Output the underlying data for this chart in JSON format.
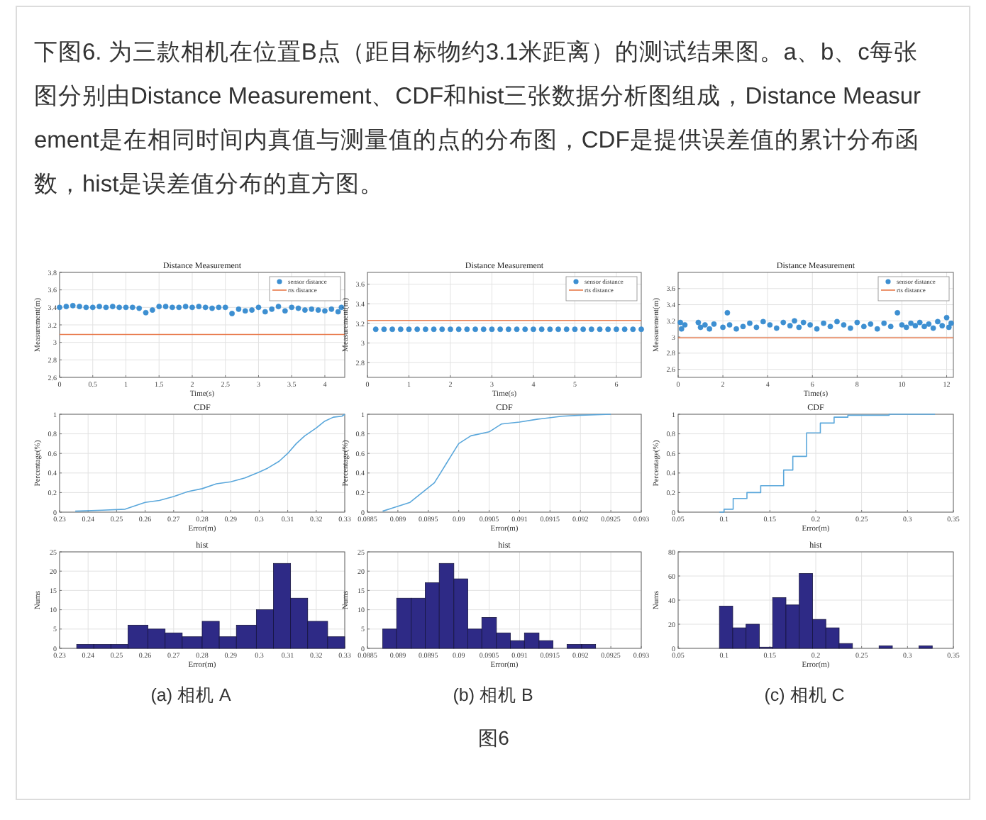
{
  "chart_data": [
    {
      "type": "other",
      "title": "下图6. 为三款相机在位置B点（距目标物约3.1米距离）的测试结果图。a、b、c每张图分别由Distance Measurement、CDF和hist三张数据分析图组成，Distance Measurement是在相同时间内真值与测量值的点的分布图，CDF是提供误差值的累计分布函数，hist是误差值分布的直方图。",
      "annotations": [
        "图6"
      ]
    },
    {
      "type": "scatter",
      "title": "Distance Measurement",
      "xlabel": "Time(s)",
      "ylabel": "Measurement(m)",
      "xlim": [
        0,
        4.3
      ],
      "xticks": [
        0,
        0.5,
        1,
        1.5,
        2,
        2.5,
        3,
        3.5,
        4
      ],
      "ylim": [
        2.6,
        3.8
      ],
      "yticks": [
        2.6,
        2.8,
        3,
        3.2,
        3.4,
        3.6,
        3.8
      ],
      "grid": true,
      "legend": "top right",
      "series": [
        {
          "name": "sensor distance",
          "marker": "circle",
          "color": "#3d8fd1",
          "x": [
            0,
            0.1,
            0.2,
            0.3,
            0.4,
            0.5,
            0.6,
            0.7,
            0.8,
            0.9,
            1.0,
            1.1,
            1.2,
            1.3,
            1.4,
            1.5,
            1.6,
            1.7,
            1.8,
            1.9,
            2.0,
            2.1,
            2.2,
            2.3,
            2.4,
            2.5,
            2.6,
            2.7,
            2.8,
            2.9,
            3.0,
            3.1,
            3.2,
            3.3,
            3.4,
            3.5,
            3.6,
            3.7,
            3.8,
            3.9,
            4.0,
            4.1,
            4.2,
            4.25
          ],
          "values": [
            3.4,
            3.41,
            3.42,
            3.41,
            3.4,
            3.4,
            3.41,
            3.4,
            3.41,
            3.4,
            3.4,
            3.4,
            3.39,
            3.34,
            3.37,
            3.41,
            3.41,
            3.4,
            3.4,
            3.41,
            3.4,
            3.41,
            3.4,
            3.39,
            3.4,
            3.4,
            3.33,
            3.38,
            3.36,
            3.37,
            3.4,
            3.35,
            3.38,
            3.41,
            3.36,
            3.4,
            3.39,
            3.37,
            3.38,
            3.37,
            3.36,
            3.38,
            3.35,
            3.4
          ]
        },
        {
          "name": "rts distance",
          "type": "line",
          "marker": "none",
          "color": "#e8794a",
          "x": [
            0,
            4.3
          ],
          "values": [
            3.09,
            3.09
          ]
        }
      ]
    },
    {
      "type": "line",
      "title": "CDF",
      "xlabel": "Error(m)",
      "ylabel": "Percentage(%)",
      "xlim": [
        0.23,
        0.33
      ],
      "xticks": [
        0.23,
        0.24,
        0.25,
        0.26,
        0.27,
        0.28,
        0.29,
        0.3,
        0.31,
        0.32,
        0.33
      ],
      "ylim": [
        0,
        1
      ],
      "yticks": [
        0,
        0.2,
        0.4,
        0.6,
        0.8,
        1
      ],
      "grid": true,
      "series": [
        {
          "color": "#5aa7db",
          "x": [
            0.2355,
            0.245,
            0.253,
            0.255,
            0.26,
            0.265,
            0.27,
            0.275,
            0.28,
            0.285,
            0.29,
            0.295,
            0.3,
            0.303,
            0.307,
            0.31,
            0.313,
            0.316,
            0.32,
            0.323,
            0.326,
            0.329,
            0.33
          ],
          "values": [
            0.01,
            0.02,
            0.03,
            0.05,
            0.1,
            0.12,
            0.16,
            0.21,
            0.24,
            0.29,
            0.31,
            0.35,
            0.41,
            0.45,
            0.52,
            0.6,
            0.7,
            0.78,
            0.86,
            0.93,
            0.97,
            0.98,
            1.0
          ]
        }
      ]
    },
    {
      "type": "histogram",
      "title": "hist",
      "xlabel": "Error(m)",
      "ylabel": "Nums",
      "xlim": [
        0.23,
        0.33
      ],
      "xticks": [
        0.23,
        0.24,
        0.25,
        0.26,
        0.27,
        0.28,
        0.29,
        0.3,
        0.31,
        0.32,
        0.33
      ],
      "ylim": [
        0,
        25
      ],
      "yticks": [
        0,
        5,
        10,
        15,
        20,
        25
      ],
      "grid": true,
      "color": "#2e2a86",
      "bins": [
        0.236,
        0.242,
        0.248,
        0.254,
        0.261,
        0.267,
        0.273,
        0.28,
        0.286,
        0.292,
        0.299,
        0.305,
        0.311,
        0.317,
        0.324,
        0.33
      ],
      "values": [
        1,
        1,
        1,
        6,
        5,
        4,
        3,
        7,
        3,
        6,
        10,
        22,
        13,
        7,
        3
      ],
      "annotations": [
        "(a)  相机 A"
      ]
    },
    {
      "type": "scatter",
      "title": "Distance Measurement",
      "xlabel": "Time(s)",
      "ylabel": "Measurement(m)",
      "xlim": [
        0,
        6.6
      ],
      "xticks": [
        0,
        1,
        2,
        3,
        4,
        5,
        6
      ],
      "ylim": [
        2.65,
        3.72
      ],
      "yticks": [
        2.8,
        3,
        3.2,
        3.4,
        3.6
      ],
      "grid": true,
      "legend": "top right",
      "series": [
        {
          "name": "sensor distance",
          "marker": "circle",
          "color": "#3d8fd1",
          "x": [
            0.2,
            0.4,
            0.6,
            0.8,
            1.0,
            1.2,
            1.4,
            1.6,
            1.8,
            2.0,
            2.2,
            2.4,
            2.6,
            2.8,
            3.0,
            3.2,
            3.4,
            3.6,
            3.8,
            4.0,
            4.2,
            4.4,
            4.6,
            4.8,
            5.0,
            5.2,
            5.4,
            5.6,
            5.8,
            6.0,
            6.2,
            6.4,
            6.6
          ],
          "values": [
            3.14,
            3.14,
            3.14,
            3.14,
            3.14,
            3.14,
            3.14,
            3.14,
            3.14,
            3.14,
            3.14,
            3.14,
            3.14,
            3.14,
            3.14,
            3.14,
            3.14,
            3.14,
            3.14,
            3.14,
            3.14,
            3.14,
            3.14,
            3.14,
            3.14,
            3.14,
            3.14,
            3.14,
            3.14,
            3.14,
            3.14,
            3.14,
            3.14
          ]
        },
        {
          "name": "rts distance",
          "type": "line",
          "marker": "none",
          "color": "#e8794a",
          "x": [
            0,
            6.6
          ],
          "values": [
            3.23,
            3.23
          ]
        }
      ]
    },
    {
      "type": "line",
      "title": "CDF",
      "xlabel": "Error(m)",
      "ylabel": "Percentage(%)",
      "xlim": [
        0.0885,
        0.093
      ],
      "xticks": [
        0.0885,
        0.089,
        0.0895,
        0.09,
        0.0905,
        0.091,
        0.0915,
        0.092,
        0.0925,
        0.093
      ],
      "ylim": [
        0,
        1
      ],
      "yticks": [
        0,
        0.2,
        0.4,
        0.6,
        0.8,
        1
      ],
      "grid": true,
      "series": [
        {
          "color": "#5aa7db",
          "x": [
            0.08875,
            0.0889,
            0.0892,
            0.0894,
            0.0896,
            0.0897,
            0.0898,
            0.0899,
            0.09,
            0.0902,
            0.0905,
            0.0907,
            0.091,
            0.0913,
            0.0917,
            0.092,
            0.0925
          ],
          "values": [
            0.01,
            0.04,
            0.1,
            0.2,
            0.3,
            0.4,
            0.5,
            0.6,
            0.7,
            0.78,
            0.82,
            0.9,
            0.92,
            0.95,
            0.98,
            0.99,
            1.0
          ]
        }
      ]
    },
    {
      "type": "histogram",
      "title": "hist",
      "xlabel": "Error(m)",
      "ylabel": "Nums",
      "xlim": [
        0.0885,
        0.093
      ],
      "xticks": [
        0.0885,
        0.089,
        0.0895,
        0.09,
        0.0905,
        0.091,
        0.0915,
        0.092,
        0.0925,
        0.093
      ],
      "ylim": [
        0,
        25
      ],
      "yticks": [
        0,
        5,
        10,
        15,
        20,
        25
      ],
      "grid": true,
      "color": "#2e2a86",
      "bins": [
        0.08875,
        0.08898,
        0.08922,
        0.08945,
        0.08968,
        0.08992,
        0.09015,
        0.09038,
        0.09062,
        0.09085,
        0.09108,
        0.09132,
        0.09155,
        0.09178,
        0.09202,
        0.09225
      ],
      "values": [
        5,
        13,
        13,
        17,
        22,
        18,
        5,
        8,
        4,
        2,
        4,
        2,
        0,
        1,
        1
      ],
      "annotations": [
        "(b)  相机 B"
      ]
    },
    {
      "type": "scatter",
      "title": "Distance Measurement",
      "xlabel": "Time(s)",
      "ylabel": "Measurement(m)",
      "xlim": [
        0,
        12.3
      ],
      "xticks": [
        0,
        2,
        4,
        6,
        8,
        10,
        12
      ],
      "ylim": [
        2.5,
        3.8
      ],
      "yticks": [
        2.6,
        2.8,
        3,
        3.2,
        3.4,
        3.6
      ],
      "grid": true,
      "legend": "top right",
      "series": [
        {
          "name": "sensor distance",
          "marker": "circle",
          "color": "#3d8fd1",
          "x": [
            0.1,
            0.15,
            0.3,
            0.9,
            1.0,
            1.2,
            1.4,
            1.6,
            2.0,
            2.2,
            2.3,
            2.6,
            2.9,
            3.2,
            3.5,
            3.8,
            4.1,
            4.4,
            4.7,
            5.0,
            5.2,
            5.4,
            5.6,
            5.9,
            6.2,
            6.5,
            6.8,
            7.1,
            7.4,
            7.7,
            8.0,
            8.3,
            8.6,
            8.9,
            9.2,
            9.5,
            9.8,
            10.0,
            10.2,
            10.4,
            10.6,
            10.8,
            11.0,
            11.2,
            11.4,
            11.6,
            11.8,
            12.0,
            12.1,
            12.2
          ],
          "values": [
            3.18,
            3.1,
            3.15,
            3.18,
            3.12,
            3.15,
            3.1,
            3.16,
            3.12,
            3.3,
            3.15,
            3.1,
            3.13,
            3.17,
            3.12,
            3.19,
            3.15,
            3.11,
            3.18,
            3.14,
            3.2,
            3.12,
            3.18,
            3.15,
            3.1,
            3.17,
            3.13,
            3.19,
            3.15,
            3.11,
            3.18,
            3.13,
            3.16,
            3.1,
            3.17,
            3.13,
            3.3,
            3.15,
            3.12,
            3.17,
            3.14,
            3.18,
            3.13,
            3.16,
            3.11,
            3.19,
            3.14,
            3.24,
            3.12,
            3.17
          ]
        },
        {
          "name": "rts distance",
          "type": "line",
          "marker": "none",
          "color": "#e8794a",
          "x": [
            0,
            12.3
          ],
          "values": [
            2.99,
            2.99
          ]
        }
      ]
    },
    {
      "type": "step",
      "title": "CDF",
      "xlabel": "Error(m)",
      "ylabel": "Percentage(%)",
      "xlim": [
        0.05,
        0.35
      ],
      "xticks": [
        0.05,
        0.1,
        0.15,
        0.2,
        0.25,
        0.3,
        0.35
      ],
      "ylim": [
        0,
        1
      ],
      "yticks": [
        0,
        0.2,
        0.4,
        0.6,
        0.8,
        1
      ],
      "grid": true,
      "series": [
        {
          "color": "#5aa7db",
          "x": [
            0.095,
            0.1,
            0.11,
            0.125,
            0.14,
            0.165,
            0.175,
            0.19,
            0.205,
            0.22,
            0.235,
            0.28,
            0.33
          ],
          "values": [
            0,
            0.03,
            0.14,
            0.2,
            0.27,
            0.43,
            0.57,
            0.81,
            0.91,
            0.97,
            0.99,
            1.0,
            1.0
          ]
        }
      ]
    },
    {
      "type": "histogram",
      "title": "hist",
      "xlabel": "Error(m)",
      "ylabel": "Nums",
      "xlim": [
        0.05,
        0.35
      ],
      "xticks": [
        0.05,
        0.1,
        0.15,
        0.2,
        0.25,
        0.3,
        0.35
      ],
      "ylim": [
        0,
        80
      ],
      "yticks": [
        0,
        20,
        40,
        60,
        80
      ],
      "grid": true,
      "color": "#2e2a86",
      "bins": [
        0.095,
        0.1095,
        0.124,
        0.1385,
        0.153,
        0.1675,
        0.182,
        0.1965,
        0.211,
        0.2255,
        0.24,
        0.2545,
        0.269,
        0.2835,
        0.298,
        0.3125,
        0.327
      ],
      "values": [
        35,
        17,
        20,
        1,
        42,
        36,
        62,
        24,
        17,
        4,
        0,
        0,
        2,
        0,
        0,
        2
      ],
      "annotations": [
        "(c)  相机 C"
      ]
    }
  ]
}
